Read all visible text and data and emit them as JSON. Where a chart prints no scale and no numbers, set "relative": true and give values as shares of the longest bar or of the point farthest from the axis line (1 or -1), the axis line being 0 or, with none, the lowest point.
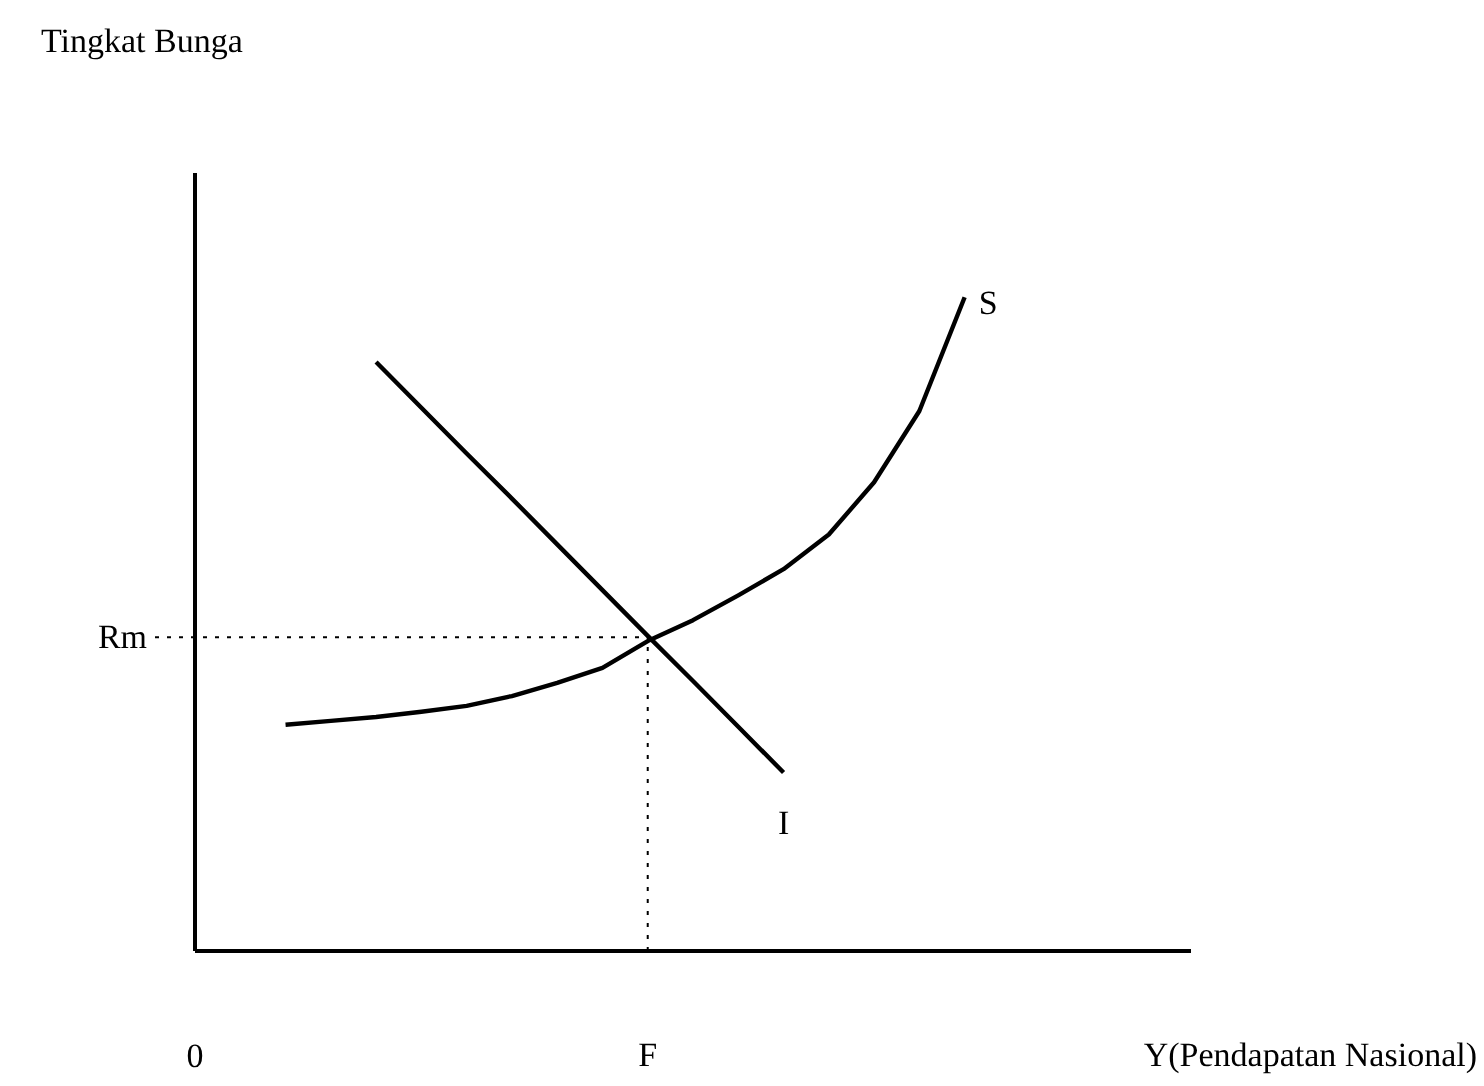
{
  "chart_data": {
    "type": "line",
    "relative": true,
    "annotations": [
      "Tingkat Bunga"
    ],
    "xlabel": "Y(Pendapatan Nasional)",
    "line_style": "solid",
    "categories": [
      "0",
      null,
      null,
      null,
      null,
      null,
      null,
      null,
      null,
      null,
      "F",
      null,
      null,
      null,
      null,
      null,
      null,
      null,
      null,
      null,
      null,
      null,
      null
    ],
    "series": [
      {
        "name": "S",
        "color": "#000000",
        "values": [
          null,
          null,
          0.346,
          0.352,
          0.358,
          0.366,
          0.375,
          0.39,
          0.41,
          0.433,
          0.474,
          0.506,
          0.544,
          0.584,
          0.637,
          0.717,
          0.826,
          1.0,
          null,
          null,
          null,
          null,
          null
        ]
      },
      {
        "name": "I",
        "color": "#000000",
        "values": [
          null,
          null,
          null,
          null,
          0.901,
          0.831,
          0.761,
          0.692,
          0.622,
          0.552,
          0.482,
          0.413,
          0.343,
          0.273,
          null,
          null,
          null,
          null,
          null,
          null,
          null,
          null,
          null
        ]
      }
    ],
    "ref_lines": [
      {
        "axis": "y",
        "value": 0.48,
        "label": "Rm",
        "line_style": "dotted",
        "color": "#000000"
      },
      {
        "axis": "x",
        "value": "F",
        "line_style": "dotted",
        "color": "#000000"
      }
    ]
  }
}
